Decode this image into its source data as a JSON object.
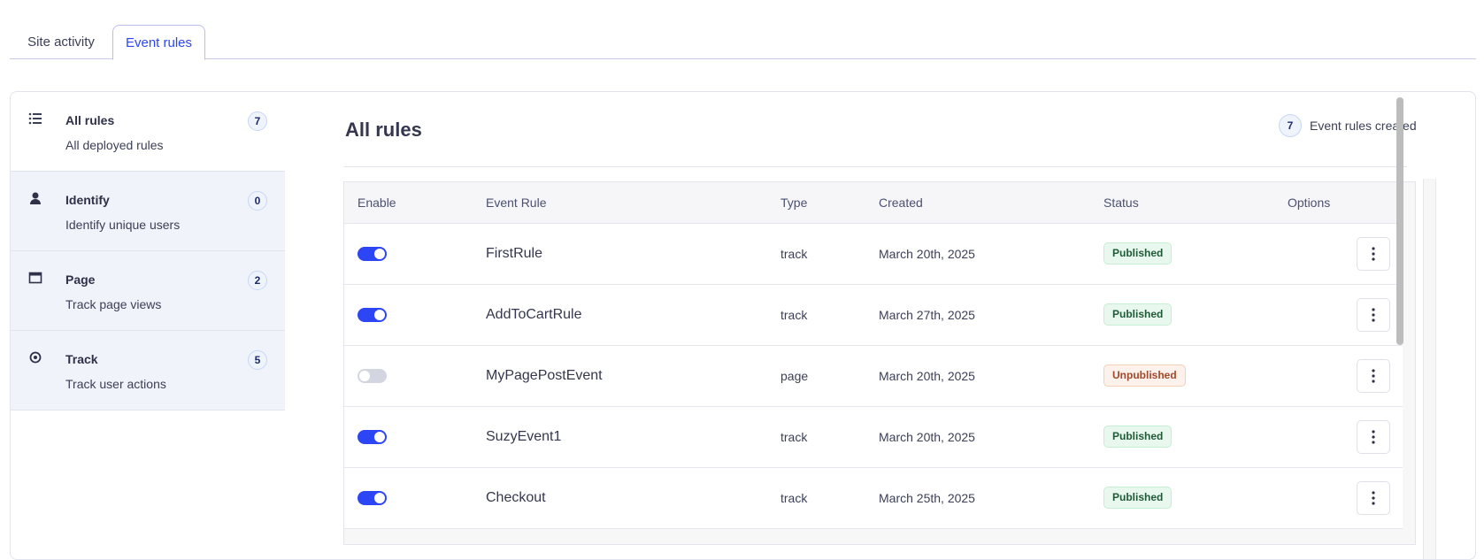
{
  "tabs": [
    {
      "label": "Site activity"
    },
    {
      "label": "Event rules",
      "active": true
    }
  ],
  "sidebar": {
    "items": [
      {
        "icon": "list-icon",
        "title": "All rules",
        "subtitle": "All deployed rules",
        "count": "7",
        "active": true
      },
      {
        "icon": "user-icon",
        "title": "Identify",
        "subtitle": "Identify unique users",
        "count": "0"
      },
      {
        "icon": "browser-window-icon",
        "title": "Page",
        "subtitle": "Track page views",
        "count": "2"
      },
      {
        "icon": "target-icon",
        "title": "Track",
        "subtitle": "Track user actions",
        "count": "5"
      }
    ]
  },
  "main": {
    "title": "All rules",
    "created_count": "7",
    "created_label": "Event rules created",
    "columns": [
      "Enable",
      "Event Rule",
      "Type",
      "Created",
      "Status",
      "Options"
    ],
    "rows": [
      {
        "enabled": true,
        "name": "FirstRule",
        "type": "track",
        "created": "March 20th, 2025",
        "status": "Published"
      },
      {
        "enabled": true,
        "name": "AddToCartRule",
        "type": "track",
        "created": "March 27th, 2025",
        "status": "Published"
      },
      {
        "enabled": false,
        "name": "MyPagePostEvent",
        "type": "page",
        "created": "March 20th, 2025",
        "status": "Unpublished"
      },
      {
        "enabled": true,
        "name": "SuzyEvent1",
        "type": "track",
        "created": "March 20th, 2025",
        "status": "Published"
      },
      {
        "enabled": true,
        "name": "Checkout",
        "type": "track",
        "created": "March 25th, 2025",
        "status": "Published"
      }
    ]
  },
  "colors": {
    "accent": "#2c46f5",
    "published": "#1f5a37",
    "unpublished": "#a3482a"
  }
}
